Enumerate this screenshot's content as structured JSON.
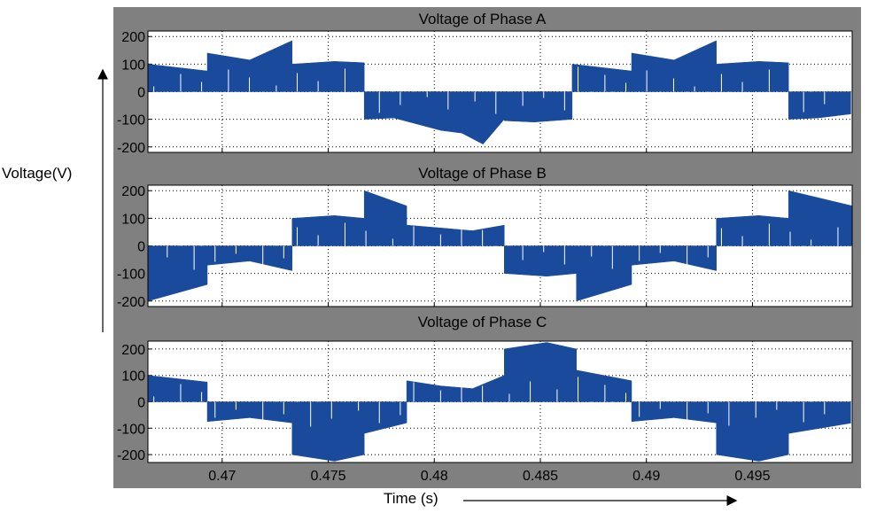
{
  "chart_data": [
    {
      "type": "line",
      "title": "Voltage of Phase A",
      "xlim": [
        0.4665,
        0.4997
      ],
      "ylim": [
        -220,
        220
      ],
      "yticks": [
        -200,
        -100,
        0,
        100,
        200
      ],
      "grid": true,
      "color": "#1a4a9c",
      "series": [
        {
          "x": [
            0.4665,
            0.4693,
            0.4693,
            0.4713,
            0.4723,
            0.4733,
            0.4733,
            0.4753,
            0.4767,
            0.4767,
            0.4781,
            0.4803,
            0.4813,
            0.4823,
            0.4833,
            0.4833,
            0.4847,
            0.4865,
            0.4865,
            0.4893,
            0.4893,
            0.4913,
            0.4923,
            0.4933,
            0.4933,
            0.4953,
            0.4967,
            0.4967,
            0.4981,
            0.4997
          ],
          "values": [
            100,
            75,
            140,
            115,
            150,
            185,
            100,
            110,
            105,
            -100,
            -95,
            -140,
            -150,
            -190,
            -100,
            -105,
            -110,
            -100,
            100,
            75,
            140,
            115,
            150,
            185,
            100,
            110,
            105,
            -100,
            -95,
            -80
          ]
        }
      ]
    },
    {
      "type": "line",
      "title": "Voltage of Phase B",
      "xlim": [
        0.4665,
        0.4997
      ],
      "ylim": [
        -220,
        220
      ],
      "yticks": [
        -200,
        -100,
        0,
        100,
        200
      ],
      "grid": true,
      "color": "#1a4a9c",
      "series": [
        {
          "x": [
            0.4665,
            0.4693,
            0.4693,
            0.4713,
            0.4733,
            0.4733,
            0.4753,
            0.4767,
            0.4767,
            0.4787,
            0.4787,
            0.4803,
            0.4818,
            0.4833,
            0.4833,
            0.4853,
            0.4867,
            0.4867,
            0.4893,
            0.4893,
            0.4913,
            0.4933,
            0.4933,
            0.4953,
            0.4967,
            0.4967,
            0.4997
          ],
          "values": [
            -200,
            -140,
            -70,
            -55,
            -90,
            100,
            110,
            100,
            200,
            145,
            75,
            65,
            55,
            75,
            -100,
            -110,
            -100,
            -200,
            -140,
            -70,
            -55,
            -90,
            100,
            110,
            100,
            200,
            145
          ]
        }
      ]
    },
    {
      "type": "line",
      "title": "Voltage of Phase C",
      "xlim": [
        0.4665,
        0.4997
      ],
      "ylim": [
        -230,
        230
      ],
      "yticks": [
        -200,
        -100,
        0,
        100,
        200
      ],
      "grid": true,
      "color": "#1a4a9c",
      "series": [
        {
          "x": [
            0.4665,
            0.4693,
            0.4693,
            0.4713,
            0.4733,
            0.4733,
            0.4753,
            0.4767,
            0.4767,
            0.4787,
            0.4787,
            0.4803,
            0.4818,
            0.4833,
            0.4833,
            0.4853,
            0.4867,
            0.4867,
            0.4893,
            0.4893,
            0.4913,
            0.4933,
            0.4933,
            0.4953,
            0.4967,
            0.4967,
            0.4997
          ],
          "values": [
            100,
            75,
            -75,
            -60,
            -80,
            -200,
            -225,
            -200,
            -120,
            -80,
            80,
            60,
            50,
            100,
            200,
            225,
            200,
            120,
            80,
            -75,
            -60,
            -80,
            -200,
            -225,
            -200,
            -120,
            -80
          ]
        }
      ]
    }
  ],
  "xticks": [
    0.47,
    0.475,
    0.48,
    0.485,
    0.49,
    0.495
  ],
  "xtick_labels": [
    "0.47",
    "0.475",
    "0.48",
    "0.485",
    "0.49",
    "0.495"
  ],
  "xlabel": "Time (s)",
  "ylabel": "Voltage(V)"
}
